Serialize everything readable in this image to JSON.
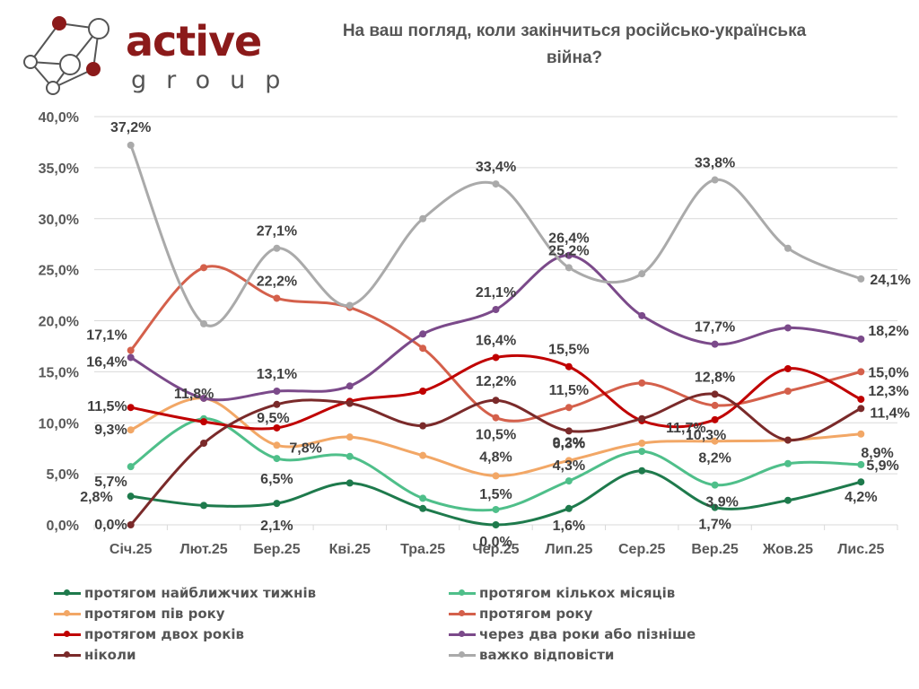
{
  "logo": {
    "brand_top": "active",
    "brand_bottom": "group",
    "icon": "network-graph-icon",
    "brand_color": "#8b1a1a"
  },
  "title": {
    "line1": "На ваш погляд, коли закінчиться російсько-українська",
    "line2": "війна?"
  },
  "chart_data": {
    "type": "line",
    "title": "На ваш погляд, коли закінчиться російсько-українська війна?",
    "xlabel": "",
    "ylabel": "",
    "categories": [
      "Січ.25",
      "Лют.25",
      "Бер.25",
      "Кві.25",
      "Тра.25",
      "Чер.25",
      "Лип.25",
      "Сер.25",
      "Вер.25",
      "Жов.25",
      "Лис.25"
    ],
    "ylim": [
      0,
      40
    ],
    "yticks": [
      "0,0%",
      "5,0%",
      "10,0%",
      "15,0%",
      "20,0%",
      "25,0%",
      "30,0%",
      "35,0%",
      "40,0%"
    ],
    "grid": true,
    "smooth": true,
    "legend_position": "bottom",
    "series": [
      {
        "name": "протягом найближчих тижнів",
        "color": "#1e7a4c",
        "values": [
          2.8,
          1.9,
          2.1,
          4.1,
          1.6,
          0.0,
          1.6,
          5.3,
          1.7,
          2.4,
          4.2
        ],
        "labels": [
          "2,8%",
          null,
          "2,1%",
          null,
          null,
          "0,0%",
          "1,6%",
          null,
          "1,7%",
          null,
          "4,2%"
        ]
      },
      {
        "name": "протягом кількох місяців",
        "color": "#4fbf8a",
        "values": [
          5.7,
          10.4,
          6.5,
          6.7,
          2.6,
          1.5,
          4.3,
          7.2,
          3.9,
          6.0,
          5.9
        ],
        "labels": [
          "5,7%",
          null,
          "6,5%",
          null,
          null,
          "1,5%",
          "4,3%",
          null,
          "3,9%",
          null,
          "5,9%"
        ]
      },
      {
        "name": "протягом пів року",
        "color": "#f2a766",
        "values": [
          9.3,
          12.4,
          7.8,
          8.6,
          6.8,
          4.8,
          6.3,
          8.0,
          8.2,
          8.3,
          8.9
        ],
        "labels": [
          "9,3%",
          null,
          "7,8%",
          null,
          null,
          "4,8%",
          "6,3%",
          null,
          "8,2%",
          null,
          "8,9%"
        ]
      },
      {
        "name": "протягом року",
        "color": "#d4604b",
        "values": [
          17.1,
          25.2,
          22.2,
          21.3,
          17.3,
          10.5,
          11.5,
          13.9,
          11.7,
          13.1,
          15.0
        ],
        "labels": [
          "17,1%",
          null,
          "22,2%",
          null,
          null,
          "10,5%",
          "11,5%",
          null,
          "11,7%",
          null,
          "15,0%"
        ]
      },
      {
        "name": "протягом двох років",
        "color": "#c00000",
        "values": [
          11.5,
          10.1,
          9.5,
          12.1,
          13.1,
          16.4,
          15.5,
          10.2,
          10.3,
          15.3,
          12.3
        ],
        "labels": [
          "11,5%",
          null,
          "9,5%",
          null,
          null,
          "16,4%",
          "15,5%",
          null,
          "10,3%",
          null,
          "12,3%"
        ]
      },
      {
        "name": "через два роки або пізніше",
        "color": "#7b4a8a",
        "values": [
          16.4,
          12.4,
          13.1,
          13.6,
          18.7,
          21.1,
          26.4,
          20.5,
          17.7,
          19.3,
          18.2
        ],
        "labels": [
          "16,4%",
          null,
          "13,1%",
          null,
          null,
          "21,1%",
          "26,4%",
          null,
          "17,7%",
          null,
          "18,2%"
        ]
      },
      {
        "name": "ніколи",
        "color": "#7a2a2a",
        "values": [
          0.0,
          8.0,
          11.8,
          11.9,
          9.7,
          12.2,
          9.2,
          10.4,
          12.8,
          8.3,
          11.4
        ],
        "labels": [
          "0,0%",
          null,
          "11,8%",
          null,
          null,
          "12,2%",
          "9,2%",
          null,
          "12,8%",
          null,
          "11,4%"
        ]
      },
      {
        "name": "важко відповісти",
        "color": "#aaaaaa",
        "values": [
          37.2,
          19.7,
          27.1,
          21.5,
          30.0,
          33.4,
          25.2,
          24.6,
          33.8,
          27.1,
          24.1
        ],
        "labels": [
          "37,2%",
          null,
          "27,1%",
          null,
          null,
          "33,4%",
          "25,2%",
          null,
          "33,8%",
          null,
          "24,1%"
        ]
      }
    ]
  },
  "legend": {
    "items": [
      {
        "label": "протягом найближчих тижнів",
        "color": "#1e7a4c"
      },
      {
        "label": "протягом кількох місяців",
        "color": "#4fbf8a"
      },
      {
        "label": "протягом пів року",
        "color": "#f2a766"
      },
      {
        "label": "протягом року",
        "color": "#d4604b"
      },
      {
        "label": "протягом двох років",
        "color": "#c00000"
      },
      {
        "label": "через два роки або пізніше",
        "color": "#7b4a8a"
      },
      {
        "label": "ніколи",
        "color": "#7a2a2a"
      },
      {
        "label": "важко відповісти",
        "color": "#aaaaaa"
      }
    ]
  }
}
